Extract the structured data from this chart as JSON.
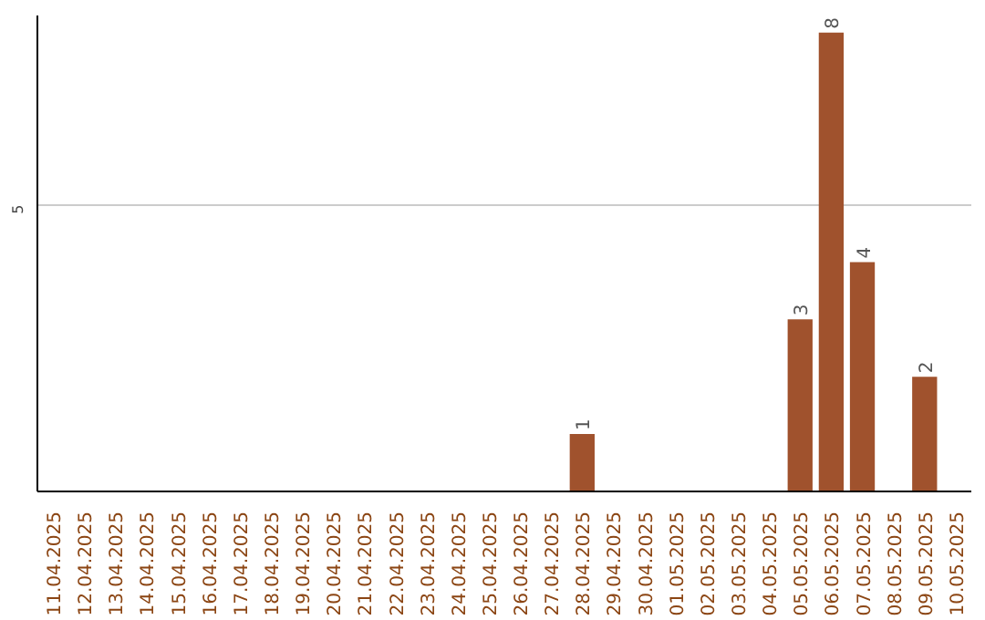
{
  "chart_data": {
    "type": "bar",
    "categories": [
      "11.04.2025",
      "12.04.2025",
      "13.04.2025",
      "14.04.2025",
      "15.04.2025",
      "16.04.2025",
      "17.04.2025",
      "18.04.2025",
      "19.04.2025",
      "20.04.2025",
      "21.04.2025",
      "22.04.2025",
      "23.04.2025",
      "24.04.2025",
      "25.04.2025",
      "26.04.2025",
      "27.04.2025",
      "28.04.2025",
      "29.04.2025",
      "30.04.2025",
      "01.05.2025",
      "02.05.2025",
      "03.05.2025",
      "04.05.2025",
      "05.05.2025",
      "06.05.2025",
      "07.05.2025",
      "08.05.2025",
      "09.05.2025",
      "10.05.2025"
    ],
    "values": [
      null,
      null,
      null,
      null,
      null,
      null,
      null,
      null,
      null,
      null,
      null,
      null,
      null,
      null,
      null,
      null,
      null,
      1,
      null,
      null,
      null,
      null,
      null,
      null,
      3,
      8,
      4,
      null,
      2,
      null
    ],
    "value_labels": [
      null,
      null,
      null,
      null,
      null,
      null,
      null,
      null,
      null,
      null,
      null,
      null,
      null,
      null,
      null,
      null,
      null,
      "1",
      null,
      null,
      null,
      null,
      null,
      null,
      "3",
      "8",
      "4",
      null,
      "2",
      null
    ],
    "color": "#a0522d",
    "ylim": [
      0,
      8.3
    ],
    "yticks": [
      5
    ],
    "grid": "y"
  }
}
